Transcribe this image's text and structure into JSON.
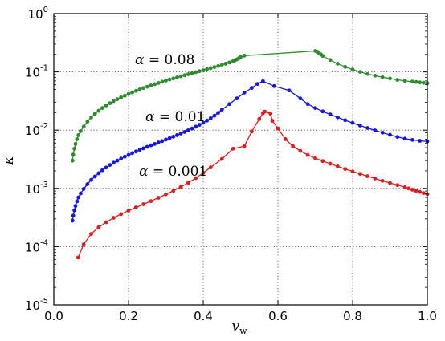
{
  "chart_data": {
    "type": "line",
    "xlabel": "v",
    "xlabel_sub": "w",
    "ylabel": "κ",
    "xlim": [
      0.0,
      1.0
    ],
    "ylim_log10": [
      -5,
      0
    ],
    "yscale": "log",
    "grid": true,
    "x_ticks": [
      "0.0",
      "0.2",
      "0.4",
      "0.6",
      "0.8",
      "1.0"
    ],
    "y_ticks": [
      {
        "base": "10",
        "exp": "-5"
      },
      {
        "base": "10",
        "exp": "-4"
      },
      {
        "base": "10",
        "exp": "-3"
      },
      {
        "base": "10",
        "exp": "-2"
      },
      {
        "base": "10",
        "exp": "-1"
      },
      {
        "base": "10",
        "exp": "0"
      }
    ],
    "annotations": [
      {
        "greek": "α",
        "text": " = 0.08",
        "series": 0
      },
      {
        "greek": "α",
        "text": " = 0.01",
        "series": 1
      },
      {
        "greek": "α",
        "text": " = 0.001",
        "series": 2
      }
    ],
    "series": [
      {
        "color": "#2e8b2e",
        "points": [
          [
            0.05,
            0.003
          ],
          [
            0.052,
            0.0038
          ],
          [
            0.055,
            0.0048
          ],
          [
            0.058,
            0.0058
          ],
          [
            0.062,
            0.007
          ],
          [
            0.066,
            0.0082
          ],
          [
            0.072,
            0.0096
          ],
          [
            0.08,
            0.0115
          ],
          [
            0.09,
            0.014
          ],
          [
            0.1,
            0.0165
          ],
          [
            0.11,
            0.019
          ],
          [
            0.12,
            0.0215
          ],
          [
            0.13,
            0.024
          ],
          [
            0.14,
            0.0265
          ],
          [
            0.15,
            0.029
          ],
          [
            0.16,
            0.0315
          ],
          [
            0.17,
            0.034
          ],
          [
            0.18,
            0.0365
          ],
          [
            0.19,
            0.039
          ],
          [
            0.2,
            0.0418
          ],
          [
            0.21,
            0.0445
          ],
          [
            0.22,
            0.0472
          ],
          [
            0.23,
            0.05
          ],
          [
            0.24,
            0.0528
          ],
          [
            0.25,
            0.0556
          ],
          [
            0.26,
            0.0585
          ],
          [
            0.27,
            0.0615
          ],
          [
            0.28,
            0.0645
          ],
          [
            0.29,
            0.0676
          ],
          [
            0.3,
            0.0708
          ],
          [
            0.31,
            0.074
          ],
          [
            0.32,
            0.0772
          ],
          [
            0.33,
            0.0805
          ],
          [
            0.34,
            0.084
          ],
          [
            0.35,
            0.0875
          ],
          [
            0.36,
            0.0912
          ],
          [
            0.37,
            0.095
          ],
          [
            0.38,
            0.099
          ],
          [
            0.39,
            0.103
          ],
          [
            0.4,
            0.107
          ],
          [
            0.41,
            0.1115
          ],
          [
            0.42,
            0.116
          ],
          [
            0.43,
            0.121
          ],
          [
            0.44,
            0.126
          ],
          [
            0.45,
            0.132
          ],
          [
            0.46,
            0.138
          ],
          [
            0.47,
            0.145
          ],
          [
            0.48,
            0.153
          ],
          [
            0.485,
            0.158
          ],
          [
            0.49,
            0.164
          ],
          [
            0.495,
            0.171
          ],
          [
            0.5,
            0.179
          ],
          [
            0.51,
            0.19
          ],
          [
            0.7,
            0.229
          ],
          [
            0.705,
            0.223
          ],
          [
            0.71,
            0.212
          ],
          [
            0.715,
            0.2
          ],
          [
            0.72,
            0.188
          ],
          [
            0.74,
            0.16
          ],
          [
            0.76,
            0.138
          ],
          [
            0.78,
            0.122
          ],
          [
            0.8,
            0.11
          ],
          [
            0.82,
            0.1
          ],
          [
            0.84,
            0.092
          ],
          [
            0.86,
            0.086
          ],
          [
            0.88,
            0.081
          ],
          [
            0.9,
            0.077
          ],
          [
            0.92,
            0.073
          ],
          [
            0.94,
            0.07
          ],
          [
            0.96,
            0.068
          ],
          [
            0.97,
            0.067
          ],
          [
            0.98,
            0.066
          ],
          [
            0.99,
            0.065
          ],
          [
            1.0,
            0.064
          ]
        ]
      },
      {
        "color": "#1515e6",
        "points": [
          [
            0.05,
            0.00028
          ],
          [
            0.052,
            0.00034
          ],
          [
            0.055,
            0.00042
          ],
          [
            0.058,
            0.0005
          ],
          [
            0.062,
            0.0006
          ],
          [
            0.066,
            0.0007
          ],
          [
            0.072,
            0.00082
          ],
          [
            0.08,
            0.00098
          ],
          [
            0.09,
            0.00118
          ],
          [
            0.1,
            0.0014
          ],
          [
            0.11,
            0.0016
          ],
          [
            0.12,
            0.00182
          ],
          [
            0.13,
            0.00205
          ],
          [
            0.14,
            0.00228
          ],
          [
            0.15,
            0.00252
          ],
          [
            0.16,
            0.00276
          ],
          [
            0.17,
            0.003
          ],
          [
            0.18,
            0.00325
          ],
          [
            0.19,
            0.0035
          ],
          [
            0.2,
            0.00376
          ],
          [
            0.21,
            0.00403
          ],
          [
            0.22,
            0.0043
          ],
          [
            0.23,
            0.00458
          ],
          [
            0.24,
            0.00487
          ],
          [
            0.25,
            0.00517
          ],
          [
            0.26,
            0.00548
          ],
          [
            0.27,
            0.0058
          ],
          [
            0.28,
            0.00614
          ],
          [
            0.29,
            0.0065
          ],
          [
            0.3,
            0.00688
          ],
          [
            0.31,
            0.00728
          ],
          [
            0.32,
            0.00772
          ],
          [
            0.33,
            0.0082
          ],
          [
            0.34,
            0.00873
          ],
          [
            0.35,
            0.0093
          ],
          [
            0.36,
            0.00995
          ],
          [
            0.37,
            0.01065
          ],
          [
            0.38,
            0.01145
          ],
          [
            0.39,
            0.01235
          ],
          [
            0.4,
            0.0134
          ],
          [
            0.41,
            0.0146
          ],
          [
            0.42,
            0.016
          ],
          [
            0.43,
            0.0177
          ],
          [
            0.44,
            0.0198
          ],
          [
            0.45,
            0.0224
          ],
          [
            0.47,
            0.028
          ],
          [
            0.49,
            0.035
          ],
          [
            0.51,
            0.044
          ],
          [
            0.53,
            0.053
          ],
          [
            0.545,
            0.062
          ],
          [
            0.56,
            0.069
          ],
          [
            0.59,
            0.057
          ],
          [
            0.63,
            0.048
          ],
          [
            0.66,
            0.035
          ],
          [
            0.68,
            0.028
          ],
          [
            0.7,
            0.024
          ],
          [
            0.72,
            0.021
          ],
          [
            0.74,
            0.0186
          ],
          [
            0.76,
            0.0166
          ],
          [
            0.78,
            0.0148
          ],
          [
            0.8,
            0.0133
          ],
          [
            0.82,
            0.012
          ],
          [
            0.84,
            0.0109
          ],
          [
            0.86,
            0.0099
          ],
          [
            0.88,
            0.00905
          ],
          [
            0.9,
            0.0083
          ],
          [
            0.92,
            0.00765
          ],
          [
            0.94,
            0.00715
          ],
          [
            0.96,
            0.0068
          ],
          [
            0.98,
            0.00655
          ],
          [
            1.0,
            0.0064
          ]
        ]
      },
      {
        "color": "#e01c1c",
        "points": [
          [
            0.065,
            6.5e-05
          ],
          [
            0.08,
            0.00011
          ],
          [
            0.1,
            0.000165
          ],
          [
            0.12,
            0.000215
          ],
          [
            0.14,
            0.000262
          ],
          [
            0.16,
            0.000312
          ],
          [
            0.18,
            0.000362
          ],
          [
            0.2,
            0.000415
          ],
          [
            0.22,
            0.000472
          ],
          [
            0.24,
            0.000535
          ],
          [
            0.26,
            0.000605
          ],
          [
            0.28,
            0.00069
          ],
          [
            0.3,
            0.00079
          ],
          [
            0.32,
            0.00091
          ],
          [
            0.34,
            0.00106
          ],
          [
            0.36,
            0.00125
          ],
          [
            0.38,
            0.0015
          ],
          [
            0.4,
            0.00185
          ],
          [
            0.42,
            0.0023
          ],
          [
            0.45,
            0.0032
          ],
          [
            0.48,
            0.0048
          ],
          [
            0.51,
            0.0053
          ],
          [
            0.53,
            0.0095
          ],
          [
            0.55,
            0.0155
          ],
          [
            0.56,
            0.0195
          ],
          [
            0.565,
            0.0208
          ],
          [
            0.58,
            0.0192
          ],
          [
            0.585,
            0.0145
          ],
          [
            0.6,
            0.0107
          ],
          [
            0.62,
            0.007
          ],
          [
            0.64,
            0.0053
          ],
          [
            0.66,
            0.0044
          ],
          [
            0.68,
            0.00375
          ],
          [
            0.7,
            0.0033
          ],
          [
            0.72,
            0.00295
          ],
          [
            0.74,
            0.00265
          ],
          [
            0.76,
            0.00238
          ],
          [
            0.78,
            0.00215
          ],
          [
            0.8,
            0.00195
          ],
          [
            0.82,
            0.00178
          ],
          [
            0.84,
            0.00162
          ],
          [
            0.86,
            0.00148
          ],
          [
            0.88,
            0.00135
          ],
          [
            0.9,
            0.00124
          ],
          [
            0.92,
            0.00114
          ],
          [
            0.94,
            0.00105
          ],
          [
            0.95,
            0.001
          ],
          [
            0.96,
            0.00095
          ],
          [
            0.97,
            0.00091
          ],
          [
            0.98,
            0.00087
          ],
          [
            0.99,
            0.00083
          ],
          [
            1.0,
            0.0008
          ]
        ]
      }
    ]
  }
}
